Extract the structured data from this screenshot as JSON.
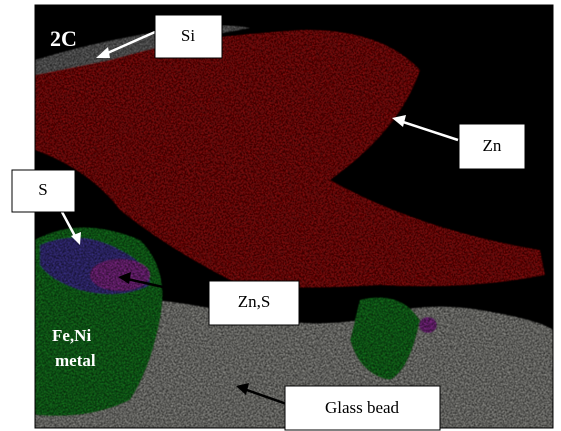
{
  "panel_label": "2C",
  "labels": {
    "si": "Si",
    "zn": "Zn",
    "s": "S",
    "zn_s": "Zn,S",
    "glass": "Glass bead"
  },
  "region_labels": {
    "fe_ni": [
      "Fe,Ni",
      "metal"
    ]
  }
}
